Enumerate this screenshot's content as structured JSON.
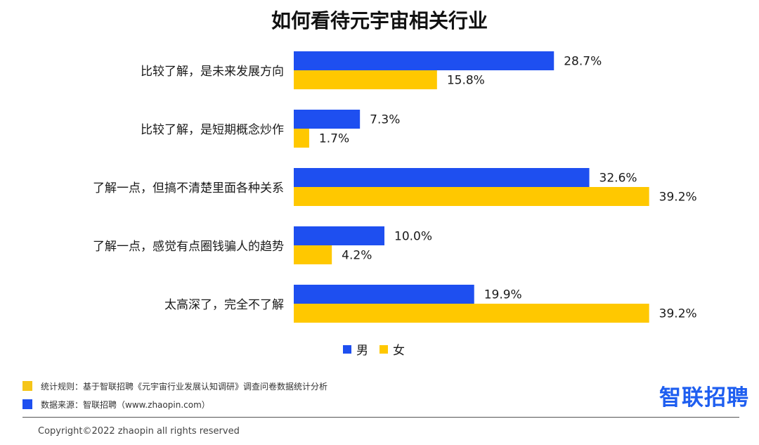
{
  "chart_data": {
    "type": "bar",
    "orientation": "horizontal",
    "title": "如何看待元宇宙相关行业",
    "categories": [
      "比较了解，是未来发展方向",
      "比较了解，是短期概念炒作",
      "了解一点，但搞不清楚里面各种关系",
      "了解一点，感觉有点圈钱骗人的趋势",
      "太高深了，完全不了解"
    ],
    "series": [
      {
        "name": "男",
        "color": "#1e4ff0",
        "values": [
          28.7,
          7.3,
          32.6,
          10.0,
          19.9
        ]
      },
      {
        "name": "女",
        "color": "#ffc800",
        "values": [
          15.8,
          1.7,
          39.2,
          4.2,
          39.2
        ]
      }
    ],
    "value_labels": {
      "男": [
        "28.7%",
        "7.3%",
        "32.6%",
        "10.0%",
        "19.9%"
      ],
      "女": [
        "15.8%",
        "1.7%",
        "39.2%",
        "4.2%",
        "39.2%"
      ]
    },
    "legend_position": "bottom-center",
    "grid": false
  },
  "footer": {
    "rule_label": "统计规则：基于智联招聘《元宇宙行业发展认知调研》调查问卷数据统计分析",
    "rule_color": "#f5c518",
    "source_label": "数据来源：智联招聘（www.zhaopin.com）",
    "source_color": "#1e4ff0",
    "logo_text": "智联招聘",
    "copyright": "Copyright©2022 zhaopin all rights reserved"
  }
}
